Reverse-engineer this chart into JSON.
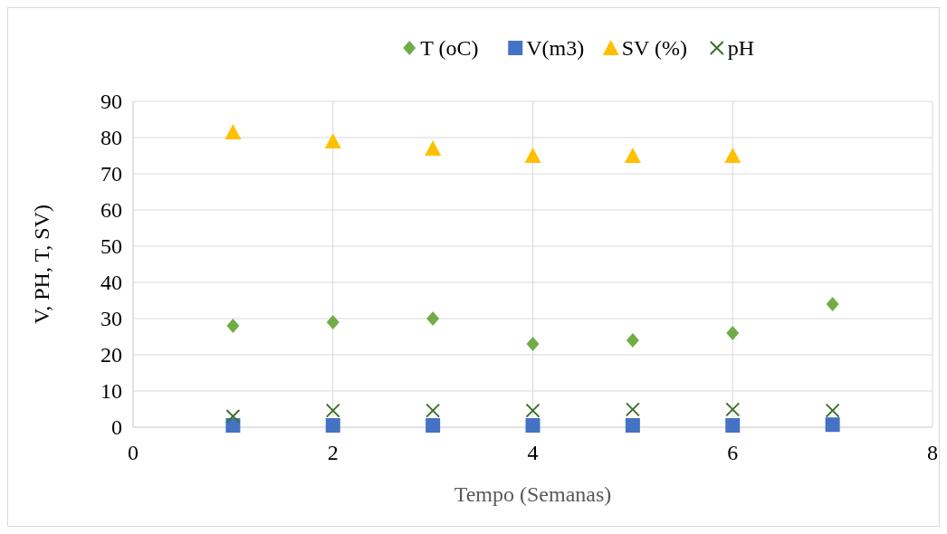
{
  "chart_data": {
    "type": "scatter",
    "xlabel": "Tempo (Semanas)",
    "ylabel": "V, PH, T, SV)",
    "xlim": [
      0,
      8
    ],
    "xticks": [
      0,
      2,
      4,
      6,
      8
    ],
    "ylim": [
      0,
      90
    ],
    "yticks": [
      0,
      10,
      20,
      30,
      40,
      50,
      60,
      70,
      80,
      90
    ],
    "grid": true,
    "legend": "top",
    "series": [
      {
        "name": "T (oC)",
        "color": "#70ad47",
        "marker": "diamond",
        "x": [
          1,
          2,
          3,
          4,
          5,
          6,
          7
        ],
        "values": [
          28,
          29,
          30,
          23,
          24,
          26,
          34
        ]
      },
      {
        "name": "V(m3)",
        "color": "#4472c4",
        "marker": "square",
        "x": [
          1,
          2,
          3,
          4,
          5,
          6,
          7
        ],
        "values": [
          0.5,
          0.5,
          0.5,
          0.5,
          0.5,
          0.5,
          0.7
        ]
      },
      {
        "name": "SV (%)",
        "color": "#ffc000",
        "marker": "triangle",
        "x": [
          1,
          2,
          3,
          4,
          5,
          6
        ],
        "values": [
          81.5,
          79,
          77,
          75,
          75,
          75
        ]
      },
      {
        "name": "pH",
        "color": "#3f6f2a",
        "marker": "cross",
        "x": [
          1,
          2,
          3,
          4,
          5,
          6,
          7
        ],
        "values": [
          3,
          4.6,
          4.6,
          4.6,
          4.9,
          4.9,
          4.6
        ]
      }
    ]
  }
}
